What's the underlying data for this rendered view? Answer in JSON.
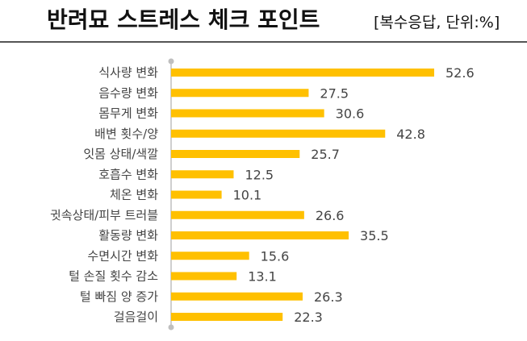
{
  "header": {
    "title": "반려묘 스트레스 체크 포인트",
    "subtitle": "[복수응답, 단위:%]"
  },
  "colors": {
    "bar": "#FFC000",
    "axis": "#BFBFBF",
    "text": "#444444",
    "rule": "#555555"
  },
  "chart_data": {
    "type": "bar",
    "orientation": "horizontal",
    "title": "반려묘 스트레스 체크 포인트",
    "subtitle": "[복수응답, 단위:%]",
    "categories": [
      "식사량 변화",
      "음수량 변화",
      "몸무게 변화",
      "배변 횟수/양",
      "잇몸 상태/색깔",
      "호흡수 변화",
      "체온 변화",
      "귓속상태/피부 트러블",
      "활동량 변화",
      "수면시간 변화",
      "털 손질 횟수 감소",
      "털 빠짐 양 증가",
      "걸음걸이"
    ],
    "values": [
      52.6,
      27.5,
      30.6,
      42.8,
      25.7,
      12.5,
      10.1,
      26.6,
      35.5,
      15.6,
      13.1,
      26.3,
      22.3
    ],
    "value_labels": [
      "52.6",
      "27.5",
      "30.6",
      "42.8",
      "25.7",
      "12.5",
      "10.1",
      "26.6",
      "35.5",
      "15.6",
      "13.1",
      "26.3",
      "22.3"
    ],
    "xlim": [
      0,
      60
    ],
    "grid": false,
    "legend": "none"
  }
}
